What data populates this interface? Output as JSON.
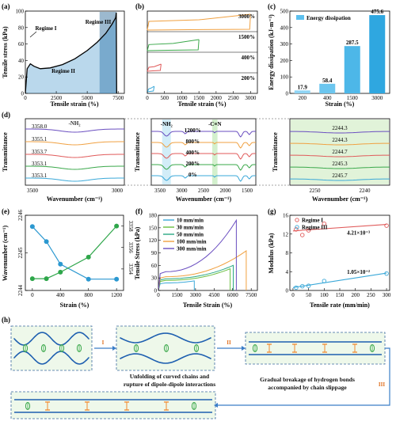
{
  "figure": {
    "panel_letters": [
      "(a)",
      "(b)",
      "(c)",
      "(d)",
      "(e)",
      "(f)",
      "(g)",
      "(h)"
    ],
    "colors": {
      "blue": "#3aa8d8",
      "green": "#3aa84a",
      "orange": "#f0a040",
      "red": "#e05a5a",
      "purple": "#6a4ec0",
      "navy": "#1b4f92",
      "chain": "#1e5fb0"
    }
  },
  "chart_data": [
    {
      "panel": "(a)",
      "type": "line",
      "xlabel": "Tensile strain (%)",
      "ylabel": "Tensile stress (kPa)",
      "xlim": [
        0,
        8000
      ],
      "ylim": [
        0,
        100
      ],
      "xticks": [
        0,
        2500,
        5000,
        7500
      ],
      "yticks": [
        0,
        20,
        40,
        60,
        80,
        100
      ],
      "annotations": [
        "Regime I",
        "Regime II",
        "Regime III"
      ],
      "points": [
        [
          0,
          0
        ],
        [
          150,
          30
        ],
        [
          400,
          36
        ],
        [
          700,
          33
        ],
        [
          1200,
          30
        ],
        [
          2000,
          31
        ],
        [
          3000,
          35
        ],
        [
          4000,
          42
        ],
        [
          5000,
          52
        ],
        [
          5800,
          62
        ],
        [
          6500,
          73
        ],
        [
          7000,
          84
        ],
        [
          7300,
          92
        ],
        [
          7350,
          98
        ],
        [
          7380,
          0
        ]
      ]
    },
    {
      "panel": "(b)",
      "type": "line",
      "xlabel": "Tensile strain (%)",
      "xlim": [
        0,
        3200
      ],
      "xticks": [
        0,
        500,
        1000,
        1500,
        2000,
        2500,
        3000
      ],
      "legend": [
        "3000%",
        "1500%",
        "400%",
        "200%"
      ],
      "series": [
        {
          "name": "3000%",
          "color": "#f0a040",
          "max_strain": 3000
        },
        {
          "name": "1500%",
          "color": "#3aa84a",
          "max_strain": 1500
        },
        {
          "name": "400%",
          "color": "#e05a5a",
          "max_strain": 400
        },
        {
          "name": "200%",
          "color": "#3aa8d8",
          "max_strain": 200
        }
      ]
    },
    {
      "panel": "(c)",
      "type": "bar",
      "xlabel": "Strain (%)",
      "ylabel": "Energy dissipation (kJ·m⁻³)",
      "legend": "Energy dissipation",
      "categories": [
        "200",
        "400",
        "1500",
        "3000"
      ],
      "values": [
        17.9,
        58.4,
        287.5,
        475.6
      ],
      "value_labels": [
        "17.9",
        "58.4",
        "287.5",
        "475.6"
      ],
      "ylim": [
        0,
        500
      ],
      "yticks": [
        0,
        100,
        200,
        300,
        400,
        500
      ]
    },
    {
      "panel": "(d)",
      "type": "line",
      "ylabel": "Transmittance",
      "xlabel": "Wavenumber (cm⁻¹)",
      "left": {
        "xticks": [
          "3500",
          "3000"
        ],
        "title": "-NH₂",
        "peaks": [
          "3358.0",
          "3355.1",
          "3353.7",
          "3353.1",
          "3353.1"
        ]
      },
      "middle": {
        "xticks": [
          "3500",
          "3000",
          "2500",
          "2000",
          "1500"
        ],
        "group_labels": [
          "-NH₂",
          "-C≡N"
        ],
        "legend": [
          "1200%",
          "800%",
          "400%",
          "200%",
          "0%"
        ]
      },
      "right": {
        "xticks": [
          "2250",
          "2240"
        ],
        "peaks": [
          "2244.3",
          "2244.3",
          "2244.7",
          "2245.3",
          "2245.7"
        ]
      },
      "series_colors": [
        "#6a4ec0",
        "#f0a040",
        "#e05a5a",
        "#3aa84a",
        "#3aa8d8"
      ]
    },
    {
      "panel": "(e)",
      "type": "line",
      "xlabel": "Strain (%)",
      "ylabel_left": "Wavenumber (cm⁻¹)",
      "xticks": [
        0,
        400,
        800,
        1200
      ],
      "x": [
        0,
        200,
        400,
        800,
        1200
      ],
      "series": [
        {
          "axis": "left",
          "color": "#2b98d0",
          "values": [
            2245.7,
            2245.3,
            2244.7,
            2244.3,
            2244.3
          ],
          "ylim": [
            2244,
            2246
          ],
          "yticks": [
            "2244",
            "2245",
            "2246"
          ]
        },
        {
          "axis": "right",
          "color": "#2ea64a",
          "values": [
            3353.1,
            3353.1,
            3353.7,
            3355.1,
            3358.0
          ],
          "ylim": [
            3352,
            3359
          ],
          "yticks": [
            "3354",
            "3356",
            "3358"
          ]
        }
      ]
    },
    {
      "panel": "(f)",
      "type": "line",
      "xlabel": "Tensile Strain (%)",
      "ylabel": "Tensile Stress (kPa)",
      "xlim": [
        0,
        8000
      ],
      "ylim": [
        0,
        180
      ],
      "xticks": [
        0,
        1500,
        3000,
        4500,
        6000,
        7500
      ],
      "yticks": [
        0,
        30,
        60,
        90,
        120,
        150,
        180
      ],
      "series": [
        {
          "name": "10 mm/min",
          "color": "#3aa8d8",
          "end": 2900,
          "start_y": 18,
          "peak": 23
        },
        {
          "name": "30 mm/min",
          "color": "#6abf40",
          "end": 5800,
          "start_y": 24,
          "peak": 52
        },
        {
          "name": "50 mm/min",
          "color": "#2aa884",
          "end": 6050,
          "start_y": 28,
          "peak": 60
        },
        {
          "name": "100 mm/min",
          "color": "#f0a040",
          "end": 7100,
          "start_y": 33,
          "peak": 95
        },
        {
          "name": "300 mm/min",
          "color": "#6a4ec0",
          "end": 6300,
          "start_y": 45,
          "peak": 168
        }
      ]
    },
    {
      "panel": "(g)",
      "type": "scatter",
      "xlabel": "Tensile rate (mm/min)",
      "ylabel": "Modulus (kPa)",
      "xlim": [
        0,
        300
      ],
      "ylim": [
        0,
        16
      ],
      "xticks": [
        0,
        50,
        100,
        150,
        200,
        250,
        300
      ],
      "yticks": [
        0,
        4,
        8,
        12,
        16
      ],
      "series": [
        {
          "name": "Regime I",
          "color": "#e05a5a",
          "x": [
            10,
            30,
            50,
            100,
            300
          ],
          "y": [
            13.0,
            11.8,
            12.8,
            14.2,
            13.8
          ],
          "slope_label": "4.21×10⁻³"
        },
        {
          "name": "Regime III",
          "color": "#3aa8d8",
          "x": [
            10,
            30,
            50,
            100,
            300
          ],
          "y": [
            0.6,
            0.9,
            1.0,
            2.0,
            3.6
          ],
          "slope_label": "1.05×10⁻²"
        }
      ]
    }
  ],
  "schematic": {
    "label_I": "I",
    "label_II": "II",
    "label_III": "III",
    "caption_1": "Unfolding of curved chains and",
    "caption_2": "rupture of dipole-dipole interactions",
    "caption_3": "Gradual breakage of hydrogen bonds",
    "caption_4": "accompanied by chain slippage"
  }
}
